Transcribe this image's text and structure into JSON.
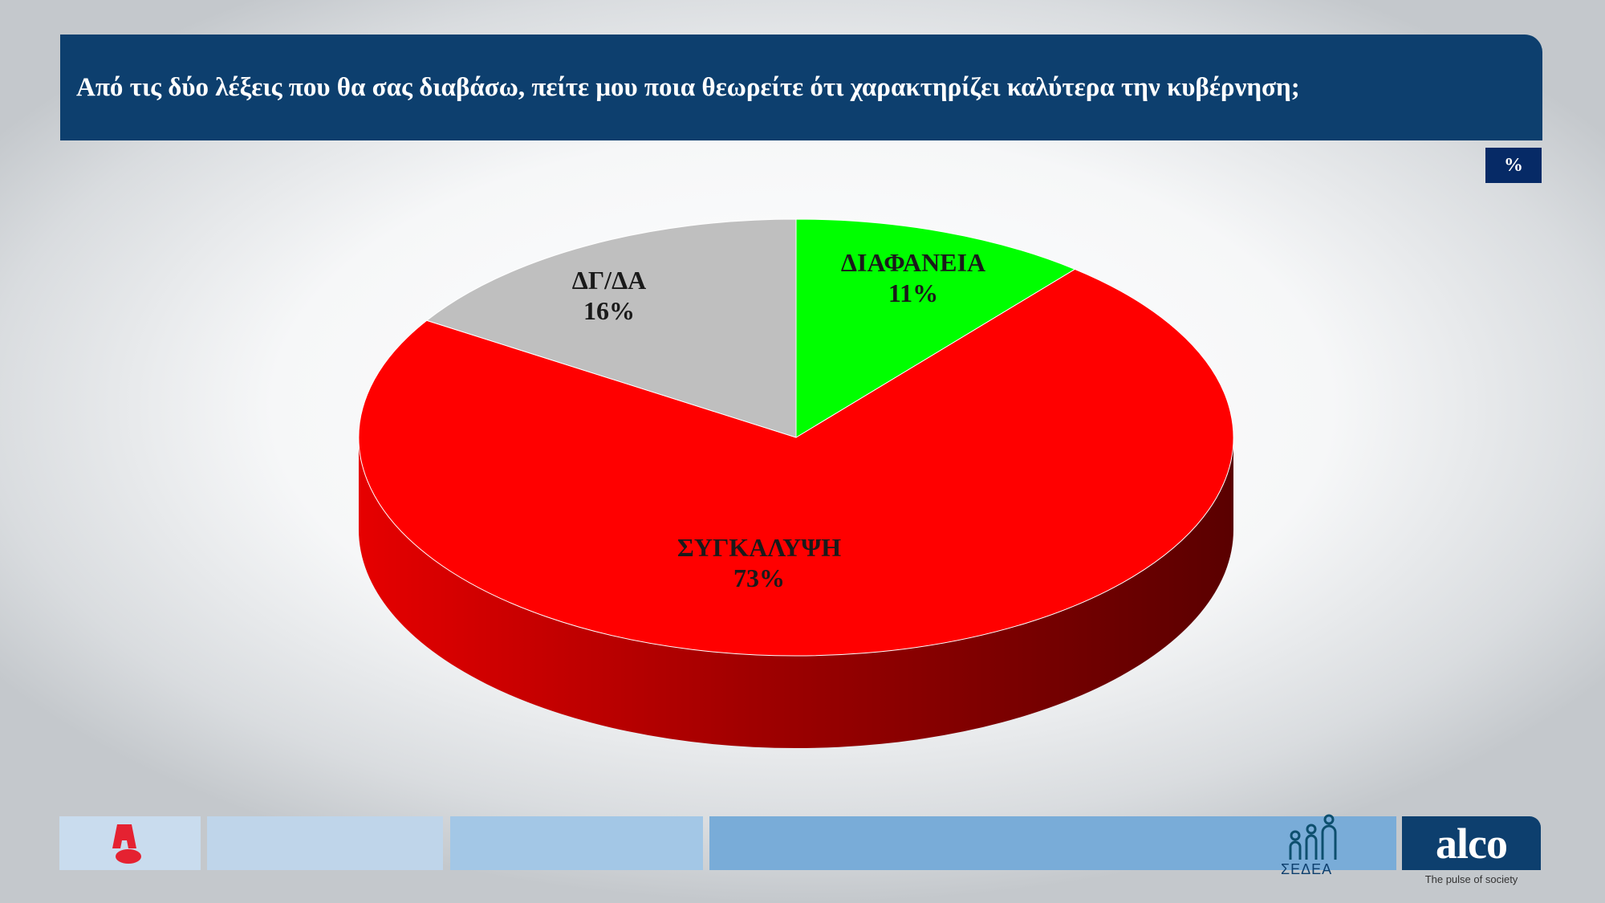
{
  "header": {
    "title": "Από τις δύο λέξεις που θα σας διαβάσω,  πείτε μου ποια θεωρείτε ότι χαρακτηρίζει καλύτερα την κυβέρνηση;"
  },
  "unit_label": "%",
  "chart_data": {
    "type": "pie",
    "style": "3d",
    "start": "12 o'clock, clockwise",
    "slices": [
      {
        "label": "ΔΙΑΦΑΝΕΙΑ",
        "value": 11,
        "value_label": "11%",
        "color": "#00ff00"
      },
      {
        "label": "ΣΥΓΚΑΛΥΨΗ",
        "value": 73,
        "value_label": "73%",
        "color": "#ff0000"
      },
      {
        "label": "ΔΓ/ΔΑ",
        "value": 16,
        "value_label": "16%",
        "color": "#bfbfbf"
      }
    ]
  },
  "footer": {
    "sedea_text": "ΣΕΔΕΑ",
    "alco_logo": "alco",
    "alco_tagline": "The pulse of society",
    "alpha_logo": "Α"
  }
}
